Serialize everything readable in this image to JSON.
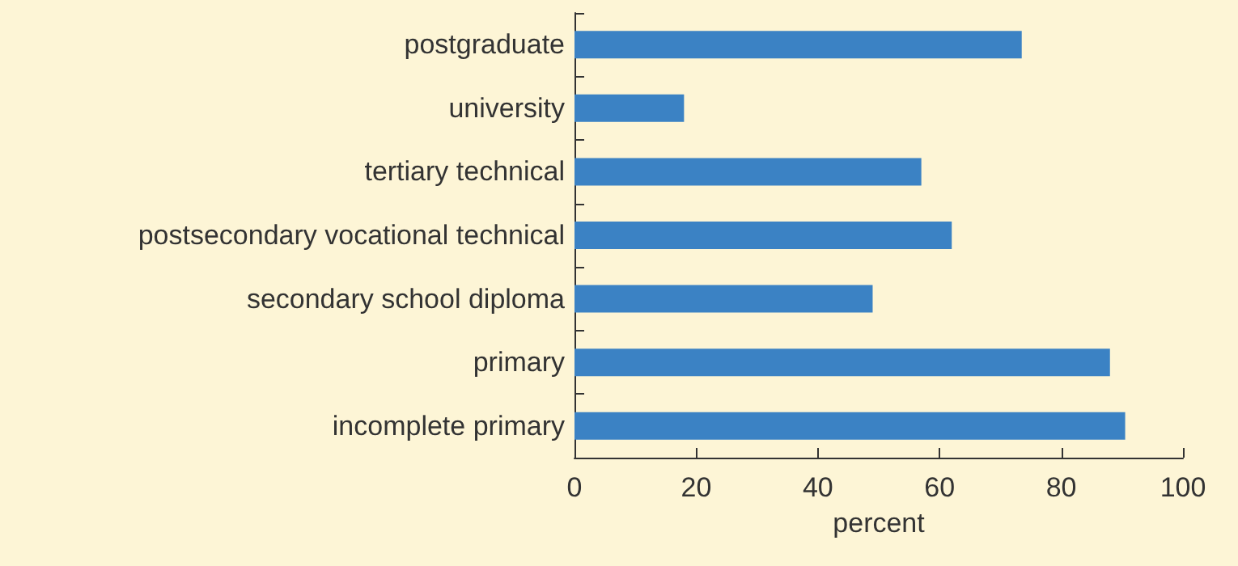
{
  "chart_data": {
    "type": "bar",
    "orientation": "horizontal",
    "xlabel": "percent",
    "categories": [
      "postgraduate",
      "university",
      "tertiary technical",
      "postsecondary vocational technical",
      "secondary school diploma",
      "primary",
      "incomplete primary"
    ],
    "values": [
      73.5,
      18,
      57,
      62,
      49,
      88,
      90.5
    ],
    "color": "#3b82c4",
    "xlim": [
      0,
      100
    ],
    "xticks": [
      0,
      20,
      40,
      60,
      80,
      100
    ]
  }
}
